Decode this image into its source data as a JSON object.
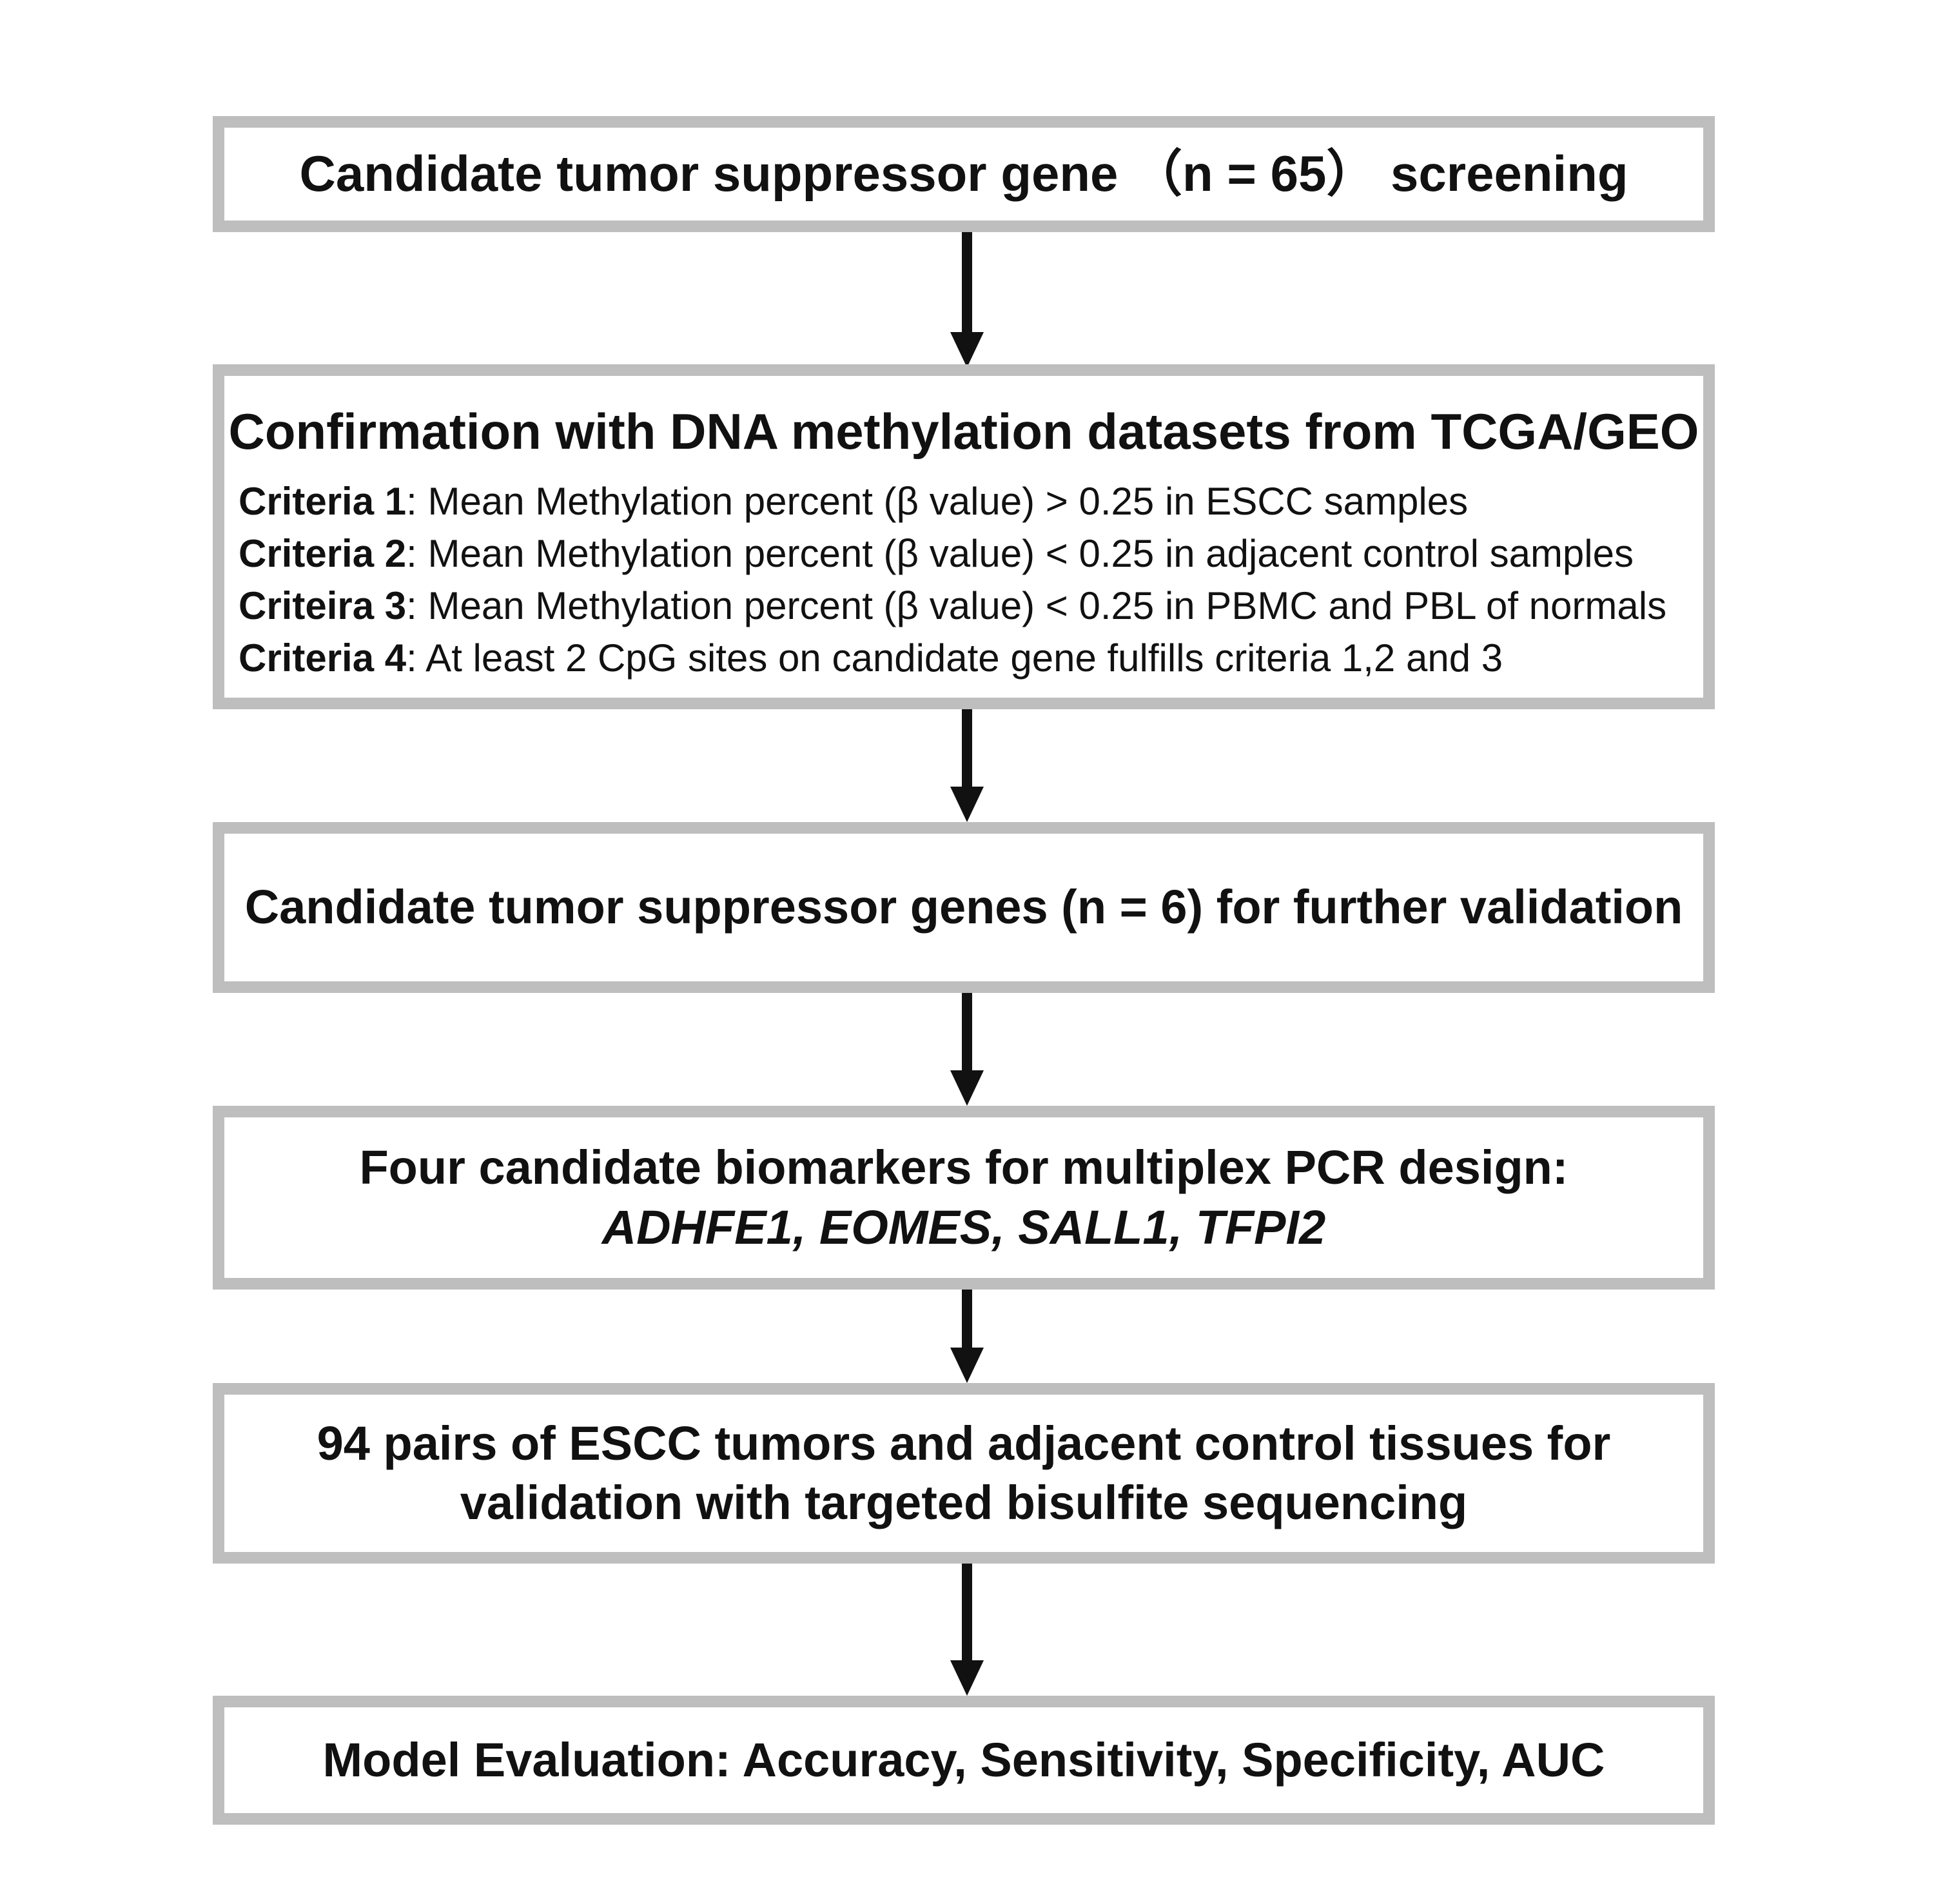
{
  "steps": [
    {
      "title": "Candidate tumor suppressor gene （n = 65） screening"
    },
    {
      "title": "Confirmation with DNA methylation datasets from TCGA/GEO",
      "criteria": [
        {
          "label": "Criteria 1",
          "text": ": Mean Methylation percent (β value) > 0.25 in ESCC  samples"
        },
        {
          "label": "Criteria 2",
          "text": ": Mean Methylation percent (β value) < 0.25 in adjacent control samples"
        },
        {
          "label": "Criteira 3",
          "text": ": Mean Methylation percent (β value) < 0.25 in PBMC and PBL of normals"
        },
        {
          "label": "Criteria 4",
          "text": ": At least 2 CpG sites on candidate gene fulfills criteria 1,2 and 3"
        }
      ]
    },
    {
      "title": "Candidate tumor suppressor genes (n = 6) for further validation"
    },
    {
      "title_line1": "Four candidate biomarkers for multiplex PCR design:",
      "title_line2": "ADHFE1, EOMES, SALL1, TFPI2"
    },
    {
      "title_line1": "94 pairs of ESCC tumors and adjacent control tissues for",
      "title_line2": "validation with targeted bisulfite sequencing"
    },
    {
      "title": "Model Evaluation: Accuracy, Sensitivity, Specificity, AUC"
    }
  ],
  "colors": {
    "box_border": "#bdbebd",
    "arrow": "#111111",
    "text": "#111111"
  }
}
